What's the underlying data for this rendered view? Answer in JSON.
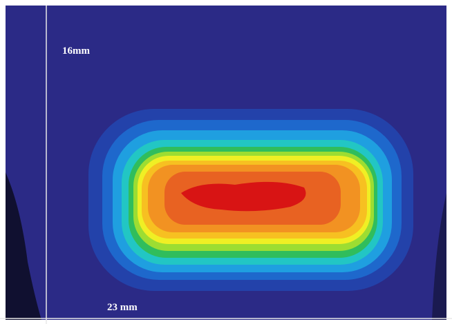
{
  "labels": {
    "height": "16mm",
    "width": "23 mm"
  }
}
